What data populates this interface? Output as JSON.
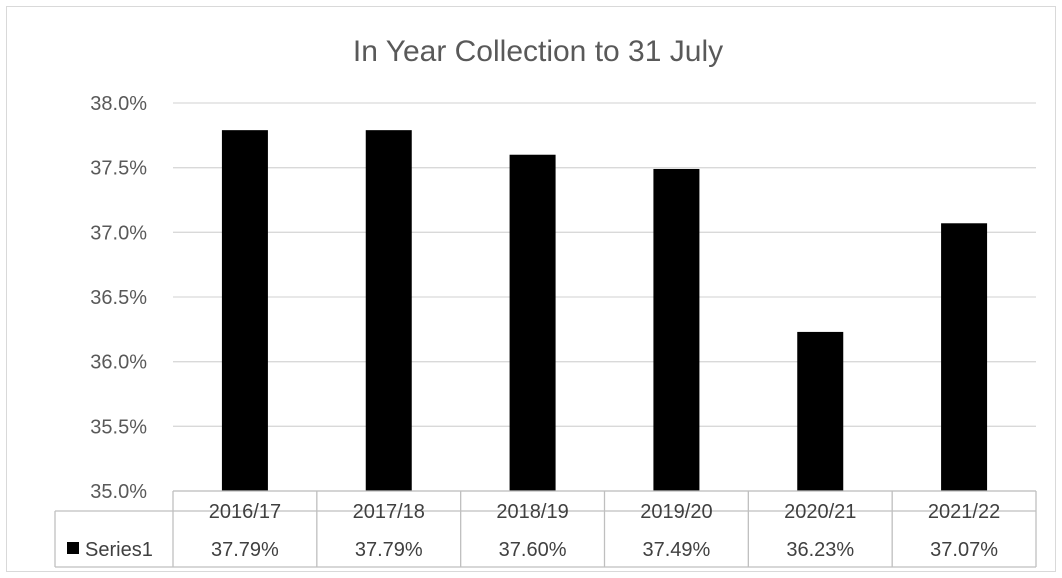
{
  "chart_data": {
    "type": "bar",
    "title": "In Year Collection to 31 July",
    "categories": [
      "2016/17",
      "2017/18",
      "2018/19",
      "2019/20",
      "2020/21",
      "2021/22"
    ],
    "series": [
      {
        "name": "Series1",
        "values": [
          37.79,
          37.79,
          37.6,
          37.49,
          36.23,
          37.07
        ],
        "labels": [
          "37.79%",
          "37.79%",
          "37.60%",
          "37.49%",
          "36.23%",
          "37.07%"
        ],
        "color": "#000000"
      }
    ],
    "ylim": [
      35.0,
      38.0
    ],
    "y_ticks": [
      "35.0%",
      "35.5%",
      "36.0%",
      "36.5%",
      "37.0%",
      "37.5%",
      "38.0%"
    ],
    "grid": true,
    "legend": "data-table"
  }
}
